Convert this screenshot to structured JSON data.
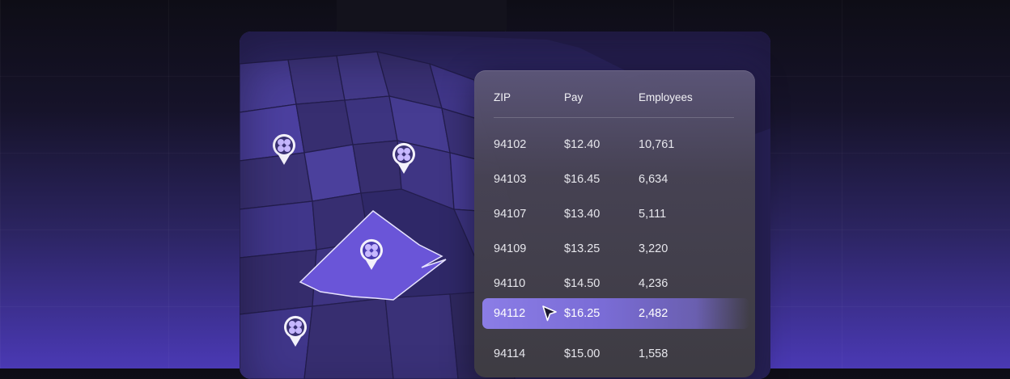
{
  "table": {
    "columns": [
      "ZIP",
      "Pay",
      "Employees"
    ],
    "rows": [
      {
        "zip": "94102",
        "pay": "$12.40",
        "employees": "10,761"
      },
      {
        "zip": "94103",
        "pay": "$16.45",
        "employees": "6,634"
      },
      {
        "zip": "94107",
        "pay": "$13.40",
        "employees": "5,111"
      },
      {
        "zip": "94109",
        "pay": "$13.25",
        "employees": "3,220"
      },
      {
        "zip": "94110",
        "pay": "$14.50",
        "employees": "4,236"
      },
      {
        "zip": "94112",
        "pay": "$16.25",
        "employees": "2,482",
        "selected": true
      },
      {
        "zip": "94114",
        "pay": "$15.00",
        "employees": "1,558"
      }
    ]
  },
  "map": {
    "pins": [
      "flower-icon",
      "flower-icon",
      "flower-icon",
      "flower-icon"
    ],
    "highlight_color": "#6a55d8"
  },
  "colors": {
    "accent": "#8b7de6",
    "map_base": "#3b3275"
  }
}
